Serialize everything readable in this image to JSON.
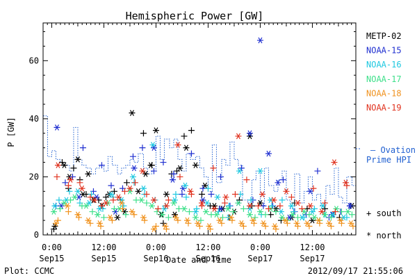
{
  "chart_data": {
    "type": "scatter",
    "title": "Hemispheric Power [GW]",
    "ylabel": "P [GW]",
    "xlabel": "Date and Time",
    "ylim": [
      0,
      73
    ],
    "xlim": [
      -0.083,
      2.917
    ],
    "yticks": [
      0,
      20,
      40,
      60
    ],
    "xticks": [
      {
        "x": 0.0,
        "time": "0:00",
        "date": "Sep15"
      },
      {
        "x": 0.5,
        "time": "12:00",
        "date": "Sep15"
      },
      {
        "x": 1.0,
        "time": "0:00",
        "date": "Sep16"
      },
      {
        "x": 1.5,
        "time": "12:00",
        "date": "Sep16"
      },
      {
        "x": 2.0,
        "time": "0:00",
        "date": "Sep17"
      },
      {
        "x": 2.5,
        "time": "12:00",
        "date": "Sep17"
      }
    ],
    "x_units": "days since 2012-09-15 00:00 UT",
    "legend": [
      {
        "name": "METP-02",
        "color": "#000000"
      },
      {
        "name": "NOAA-15",
        "color": "#1f2fd0"
      },
      {
        "name": "NOAA-16",
        "color": "#1ec8e0"
      },
      {
        "name": "NOAA-17",
        "color": "#3ee08a"
      },
      {
        "name": "NOAA-18",
        "color": "#f0921e"
      },
      {
        "name": "NOAA-19",
        "color": "#e0321e"
      }
    ],
    "ovation_label_1": "— Ovation",
    "ovation_label_2": "Prime HPI",
    "ovation_color": "#1f5fd0",
    "symbol_legend": {
      "south": "+ south",
      "north": "* north"
    },
    "ovation": {
      "x": [
        -0.083,
        -0.04,
        0.0,
        0.04,
        0.08,
        0.13,
        0.17,
        0.21,
        0.25,
        0.29,
        0.33,
        0.38,
        0.42,
        0.46,
        0.5,
        0.54,
        0.58,
        0.63,
        0.67,
        0.71,
        0.75,
        0.79,
        0.83,
        0.88,
        0.92,
        0.96,
        1.0,
        1.04,
        1.08,
        1.13,
        1.17,
        1.21,
        1.25,
        1.29,
        1.33,
        1.38,
        1.42,
        1.46,
        1.5,
        1.54,
        1.58,
        1.63,
        1.67,
        1.71,
        1.75,
        1.79,
        1.83,
        1.88,
        1.92,
        1.96,
        2.0,
        2.04,
        2.08,
        2.13,
        2.17,
        2.21,
        2.25,
        2.29,
        2.33,
        2.38,
        2.42,
        2.46,
        2.5,
        2.54,
        2.58,
        2.63,
        2.67,
        2.71,
        2.75,
        2.79,
        2.83,
        2.88
      ],
      "y": [
        41,
        27,
        29,
        26,
        25,
        24,
        22,
        37,
        26,
        24,
        23,
        21,
        23,
        24,
        22,
        27,
        24,
        21,
        23,
        24,
        26,
        25,
        28,
        23,
        21,
        22,
        34,
        26,
        33,
        30,
        33,
        26,
        22,
        28,
        26,
        27,
        23,
        20,
        15,
        31,
        18,
        26,
        24,
        32,
        26,
        24,
        12,
        11,
        19,
        22,
        10,
        23,
        17,
        15,
        19,
        22,
        12,
        9,
        21,
        11,
        15,
        20,
        12,
        14,
        10,
        17,
        14,
        23,
        13,
        11,
        20,
        17
      ]
    },
    "series": [
      {
        "name": "METP-02",
        "color": "#000000",
        "hemisphere": "south",
        "x": [
          0.02,
          0.1,
          0.16,
          0.21,
          0.27,
          0.33,
          0.45,
          0.52,
          0.6,
          0.66,
          0.72,
          0.88,
          0.96,
          1.07,
          1.15,
          1.2,
          1.27,
          1.34,
          1.44,
          1.52,
          1.61,
          1.7,
          1.8,
          1.92,
          2.1,
          2.2,
          2.33,
          2.45,
          2.62,
          2.76,
          2.86
        ],
        "y": [
          2,
          25,
          16,
          23,
          19,
          14,
          12,
          13,
          15,
          12,
          18,
          35,
          24,
          4,
          21,
          22,
          34,
          36,
          14,
          10,
          9,
          6,
          12,
          10,
          7,
          5,
          11,
          9,
          9,
          6,
          10
        ]
      },
      {
        "name": "METP-02",
        "color": "#000000",
        "hemisphere": "north",
        "x": [
          0.03,
          0.12,
          0.17,
          0.25,
          0.3,
          0.35,
          0.4,
          0.48,
          0.55,
          0.63,
          0.7,
          0.77,
          0.83,
          0.9,
          0.95,
          1.0,
          1.05,
          1.1,
          1.18,
          1.23,
          1.29,
          1.38,
          1.47,
          1.56,
          1.64,
          1.75,
          1.9,
          2.0,
          2.15,
          2.3,
          2.5,
          2.7,
          2.88
        ],
        "y": [
          3,
          24,
          20,
          26,
          14,
          21,
          12,
          10,
          14,
          6,
          8,
          42,
          15,
          21,
          24,
          36,
          7,
          14,
          7,
          23,
          30,
          24,
          17,
          10,
          9,
          8,
          34,
          11,
          9,
          6,
          5,
          7,
          10
        ]
      },
      {
        "name": "NOAA-15",
        "color": "#1f2fd0",
        "hemisphere": "south",
        "x": [
          0.04,
          0.13,
          0.2,
          0.3,
          0.4,
          0.48,
          0.57,
          0.68,
          0.78,
          0.87,
          0.98,
          1.07,
          1.17,
          1.25,
          1.34,
          1.45,
          1.53,
          1.62,
          1.71,
          1.82,
          1.93,
          2.03,
          2.12,
          2.22,
          2.33,
          2.44,
          2.55,
          2.66,
          2.77,
          2.86
        ],
        "y": [
          10,
          18,
          20,
          30,
          15,
          24,
          17,
          16,
          27,
          30,
          22,
          25,
          21,
          14,
          28,
          16,
          14,
          20,
          10,
          23,
          12,
          10,
          10,
          19,
          8,
          7,
          22,
          6,
          8,
          10
        ]
      },
      {
        "name": "NOAA-15",
        "color": "#1f2fd0",
        "hemisphere": "north",
        "x": [
          0.05,
          0.09,
          0.26,
          0.43,
          0.61,
          0.79,
          0.98,
          1.16,
          1.26,
          1.45,
          1.62,
          1.79,
          1.9,
          2.0,
          2.08,
          2.17,
          2.28,
          2.48,
          2.69,
          2.86
        ],
        "y": [
          37,
          10,
          13,
          13,
          8,
          23,
          30,
          19,
          16,
          12,
          9,
          11,
          35,
          67,
          28,
          18,
          6,
          15,
          7,
          10
        ]
      },
      {
        "name": "NOAA-16",
        "color": "#1ec8e0",
        "hemisphere": "south",
        "x": [
          0.07,
          0.17,
          0.27,
          0.38,
          0.49,
          0.59,
          0.69,
          0.79,
          0.89,
          0.99,
          1.09,
          1.19,
          1.29,
          1.39,
          1.5,
          1.6,
          1.7,
          1.81,
          1.91,
          2.01,
          2.11,
          2.21,
          2.32,
          2.42,
          2.52,
          2.62,
          2.72,
          2.83
        ],
        "y": [
          12,
          15,
          11,
          14,
          9,
          13,
          10,
          18,
          14,
          12,
          10,
          14,
          13,
          9,
          16,
          8,
          10,
          14,
          12,
          7,
          10,
          12,
          8,
          6,
          9,
          7,
          8,
          6
        ]
      },
      {
        "name": "NOAA-16",
        "color": "#1ec8e0",
        "hemisphere": "north",
        "x": [
          0.03,
          0.14,
          0.25,
          0.36,
          0.46,
          0.57,
          0.67,
          0.78,
          0.88,
          0.97,
          1.08,
          1.18,
          1.28,
          1.38,
          1.49,
          1.59,
          1.7,
          1.8,
          1.9,
          2.0,
          2.1,
          2.2,
          2.3,
          2.4,
          2.5,
          2.6,
          2.7,
          2.8
        ],
        "y": [
          10,
          12,
          15,
          11,
          9,
          14,
          12,
          20,
          16,
          31,
          9,
          12,
          17,
          8,
          11,
          13,
          6,
          22,
          9,
          22,
          12,
          8,
          10,
          6,
          8,
          10,
          7,
          6
        ]
      },
      {
        "name": "NOAA-17",
        "color": "#3ee08a",
        "hemisphere": "south",
        "x": [
          0.08,
          0.18,
          0.29,
          0.39,
          0.5,
          0.6,
          0.71,
          0.81,
          0.91,
          1.01,
          1.12,
          1.22,
          1.32,
          1.43,
          1.53,
          1.64,
          1.74,
          1.84,
          1.95,
          2.05,
          2.15,
          2.26,
          2.36,
          2.47,
          2.57,
          2.68,
          2.78,
          2.88
        ],
        "y": [
          9,
          12,
          10,
          8,
          6,
          9,
          7,
          12,
          11,
          8,
          6,
          9,
          8,
          5,
          7,
          6,
          8,
          9,
          6,
          7,
          8,
          5,
          6,
          7,
          5,
          6,
          8,
          7
        ]
      },
      {
        "name": "NOAA-17",
        "color": "#3ee08a",
        "hemisphere": "north",
        "x": [
          0.02,
          0.12,
          0.22,
          0.33,
          0.44,
          0.54,
          0.65,
          0.75,
          0.86,
          0.96,
          1.06,
          1.17,
          1.27,
          1.38,
          1.48,
          1.58,
          1.69,
          1.79,
          1.9,
          2.0,
          2.1,
          2.21,
          2.31,
          2.42,
          2.52,
          2.62,
          2.73,
          2.84
        ],
        "y": [
          8,
          11,
          13,
          10,
          7,
          11,
          9,
          15,
          12,
          10,
          7,
          11,
          9,
          6,
          8,
          7,
          9,
          11,
          7,
          8,
          9,
          6,
          7,
          8,
          6,
          7,
          9,
          8
        ]
      },
      {
        "name": "NOAA-18",
        "color": "#f0921e",
        "hemisphere": "south",
        "x": [
          0.06,
          0.16,
          0.26,
          0.37,
          0.47,
          0.58,
          0.68,
          0.79,
          0.89,
          1.0,
          1.1,
          1.21,
          1.31,
          1.42,
          1.52,
          1.63,
          1.73,
          1.84,
          1.94,
          2.05,
          2.15,
          2.26,
          2.36,
          2.47,
          2.57,
          2.68,
          2.78,
          2.89
        ],
        "y": [
          5,
          8,
          6,
          4,
          3,
          5,
          9,
          7,
          5,
          3,
          2,
          5,
          4,
          3,
          2,
          4,
          5,
          3,
          4,
          3,
          2,
          4,
          3,
          3,
          4,
          3,
          4,
          3
        ]
      },
      {
        "name": "NOAA-18",
        "color": "#f0921e",
        "hemisphere": "north",
        "x": [
          0.04,
          0.15,
          0.25,
          0.35,
          0.46,
          0.56,
          0.67,
          0.77,
          0.88,
          0.98,
          1.09,
          1.19,
          1.3,
          1.4,
          1.51,
          1.61,
          1.72,
          1.82,
          1.93,
          2.03,
          2.14,
          2.24,
          2.35,
          2.45,
          2.56,
          2.66,
          2.77,
          2.87
        ],
        "y": [
          4,
          10,
          7,
          5,
          4,
          6,
          11,
          8,
          6,
          2,
          3,
          6,
          5,
          4,
          3,
          5,
          6,
          4,
          5,
          4,
          3,
          5,
          4,
          4,
          5,
          4,
          5,
          4
        ]
      },
      {
        "name": "NOAA-19",
        "color": "#e0321e",
        "hemisphere": "south",
        "x": [
          0.05,
          0.16,
          0.27,
          0.37,
          0.48,
          0.59,
          0.7,
          0.8,
          0.91,
          1.02,
          1.12,
          1.23,
          1.34,
          1.44,
          1.55,
          1.66,
          1.76,
          1.87,
          1.98,
          2.08,
          2.19,
          2.3,
          2.4,
          2.51,
          2.62,
          2.72,
          2.83
        ],
        "y": [
          20,
          17,
          18,
          13,
          10,
          12,
          15,
          18,
          14,
          9,
          12,
          20,
          14,
          10,
          23,
          11,
          14,
          19,
          10,
          9,
          10,
          13,
          9,
          16,
          11,
          8,
          17
        ]
      },
      {
        "name": "NOAA-19",
        "color": "#e0321e",
        "hemisphere": "north",
        "x": [
          0.06,
          0.18,
          0.29,
          0.41,
          0.52,
          0.64,
          0.75,
          0.87,
          0.98,
          1.1,
          1.21,
          1.33,
          1.44,
          1.56,
          1.67,
          1.79,
          1.9,
          2.02,
          2.13,
          2.25,
          2.36,
          2.48,
          2.59,
          2.71,
          2.82
        ],
        "y": [
          24,
          19,
          16,
          12,
          11,
          13,
          16,
          22,
          12,
          10,
          31,
          15,
          11,
          9,
          13,
          34,
          10,
          14,
          12,
          15,
          11,
          10,
          8,
          25,
          18
        ]
      }
    ]
  },
  "footer": {
    "left": "Plot: CCMC",
    "right": "2012/09/17 21:55:06"
  }
}
